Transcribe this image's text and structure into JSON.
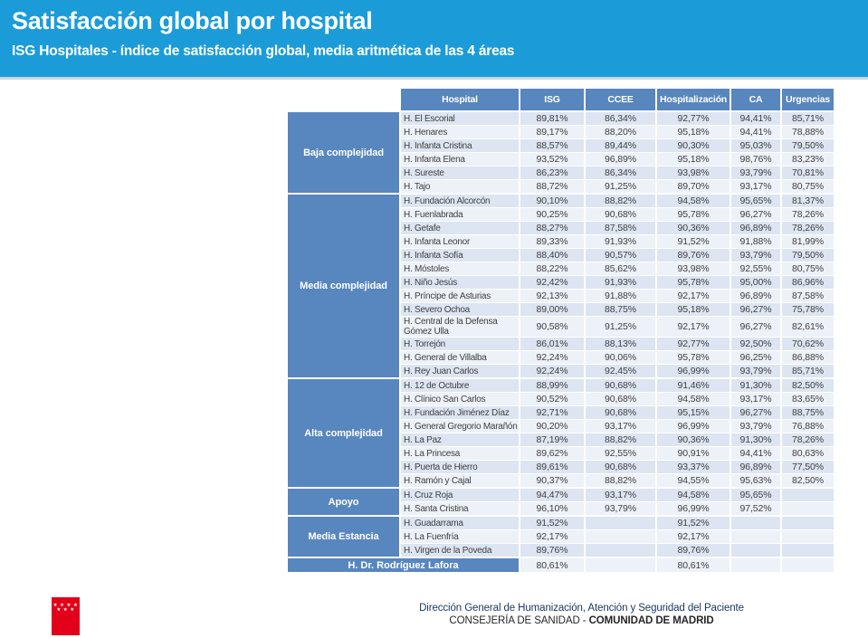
{
  "header": {
    "title": "Satisfacción global por hospital",
    "subtitle": "ISG Hospitales - índice de satisfacción global, media aritmética de las 4 áreas"
  },
  "table": {
    "columns": [
      "Hospital",
      "ISG",
      "CCEE",
      "Hospitalización",
      "CA",
      "Urgencias"
    ],
    "groups": [
      {
        "label": "Baja complejidad",
        "rows": [
          {
            "name": "H. El Escorial",
            "values": [
              "89,81%",
              "86,34%",
              "92,77%",
              "94,41%",
              "85,71%"
            ]
          },
          {
            "name": "H. Henares",
            "values": [
              "89,17%",
              "88,20%",
              "95,18%",
              "94,41%",
              "78,88%"
            ]
          },
          {
            "name": "H. Infanta Cristina",
            "values": [
              "88,57%",
              "89,44%",
              "90,30%",
              "95,03%",
              "79,50%"
            ]
          },
          {
            "name": "H. Infanta Elena",
            "values": [
              "93,52%",
              "96,89%",
              "95,18%",
              "98,76%",
              "83,23%"
            ]
          },
          {
            "name": "H. Sureste",
            "values": [
              "86,23%",
              "86,34%",
              "93,98%",
              "93,79%",
              "70,81%"
            ]
          },
          {
            "name": "H. Tajo",
            "values": [
              "88,72%",
              "91,25%",
              "89,70%",
              "93,17%",
              "80,75%"
            ]
          }
        ]
      },
      {
        "label": "Media complejidad",
        "rows": [
          {
            "name": "H. Fundación Alcorcón",
            "values": [
              "90,10%",
              "88,82%",
              "94,58%",
              "95,65%",
              "81,37%"
            ]
          },
          {
            "name": "H. Fuenlabrada",
            "values": [
              "90,25%",
              "90,68%",
              "95,78%",
              "96,27%",
              "78,26%"
            ]
          },
          {
            "name": "H. Getafe",
            "values": [
              "88,27%",
              "87,58%",
              "90,36%",
              "96,89%",
              "78,26%"
            ]
          },
          {
            "name": "H. Infanta Leonor",
            "values": [
              "89,33%",
              "91,93%",
              "91,52%",
              "91,88%",
              "81,99%"
            ]
          },
          {
            "name": "H. Infanta Sofía",
            "values": [
              "88,40%",
              "90,57%",
              "89,76%",
              "93,79%",
              "79,50%"
            ]
          },
          {
            "name": "H. Móstoles",
            "values": [
              "88,22%",
              "85,62%",
              "93,98%",
              "92,55%",
              "80,75%"
            ]
          },
          {
            "name": "H. Niño Jesús",
            "values": [
              "92,42%",
              "91,93%",
              "95,78%",
              "95,00%",
              "86,96%"
            ]
          },
          {
            "name": "H. Príncipe de Asturias",
            "values": [
              "92,13%",
              "91,88%",
              "92,17%",
              "96,89%",
              "87,58%"
            ]
          },
          {
            "name": "H. Severo Ochoa",
            "values": [
              "89,00%",
              "88,75%",
              "95,18%",
              "96,27%",
              "75,78%"
            ]
          },
          {
            "name": "H. Central de la Defensa Gómez Ulla",
            "values": [
              "90,58%",
              "91,25%",
              "92,17%",
              "96,27%",
              "82,61%"
            ]
          },
          {
            "name": "H. Torrejón",
            "values": [
              "86,01%",
              "88,13%",
              "92,77%",
              "92,50%",
              "70,62%"
            ]
          },
          {
            "name": "H. General de Villalba",
            "values": [
              "92,24%",
              "90,06%",
              "95,78%",
              "96,25%",
              "86,88%"
            ]
          },
          {
            "name": "H. Rey Juan Carlos",
            "values": [
              "92,24%",
              "92,45%",
              "96,99%",
              "93,79%",
              "85,71%"
            ]
          }
        ]
      },
      {
        "label": "Alta complejidad",
        "rows": [
          {
            "name": "H. 12 de Octubre",
            "values": [
              "88,99%",
              "90,68%",
              "91,46%",
              "91,30%",
              "82,50%"
            ]
          },
          {
            "name": "H. Clínico San Carlos",
            "values": [
              "90,52%",
              "90,68%",
              "94,58%",
              "93,17%",
              "83,65%"
            ]
          },
          {
            "name": "H. Fundación Jiménez Díaz",
            "values": [
              "92,71%",
              "90,68%",
              "95,15%",
              "96,27%",
              "88,75%"
            ]
          },
          {
            "name": "H. General Gregorio Marañón",
            "values": [
              "90,20%",
              "93,17%",
              "96,99%",
              "93,79%",
              "76,88%"
            ]
          },
          {
            "name": "H. La Paz",
            "values": [
              "87,19%",
              "88,82%",
              "90,36%",
              "91,30%",
              "78,26%"
            ]
          },
          {
            "name": "H. La Princesa",
            "values": [
              "89,62%",
              "92,55%",
              "90,91%",
              "94,41%",
              "80,63%"
            ]
          },
          {
            "name": "H. Puerta de Hierro",
            "values": [
              "89,61%",
              "90,68%",
              "93,37%",
              "96,89%",
              "77,50%"
            ]
          },
          {
            "name": "H. Ramón y Cajal",
            "values": [
              "90,37%",
              "88,82%",
              "94,55%",
              "95,63%",
              "82,50%"
            ]
          }
        ]
      },
      {
        "label": "Apoyo",
        "rows": [
          {
            "name": "H. Cruz Roja",
            "values": [
              "94,47%",
              "93,17%",
              "94,58%",
              "95,65%",
              ""
            ]
          },
          {
            "name": "H. Santa Cristina",
            "values": [
              "96,10%",
              "93,79%",
              "96,99%",
              "97,52%",
              ""
            ]
          }
        ]
      },
      {
        "label": "Media Estancia",
        "rows": [
          {
            "name": "H. Guadarrama",
            "values": [
              "91,52%",
              "",
              "91,52%",
              "",
              ""
            ]
          },
          {
            "name": "H. La Fuenfría",
            "values": [
              "92,17%",
              "",
              "92,17%",
              "",
              ""
            ]
          },
          {
            "name": "H. Virgen de la Poveda",
            "values": [
              "89,76%",
              "",
              "89,76%",
              "",
              ""
            ]
          }
        ]
      }
    ],
    "final_row": {
      "label": "H. Dr. Rodríguez Lafora",
      "values": [
        "80,61%",
        "",
        "80,61%",
        "",
        ""
      ]
    }
  },
  "footer": {
    "line1": "Dirección General de Humanización, Atención y Seguridad del Paciente",
    "line2_regular": "CONSEJERÍA DE SANIDAD - ",
    "line2_bold": "COMUNIDAD DE MADRID",
    "logo": "comunidad-de-madrid-flag",
    "logo_stars_top": "★ ★ ★ ★",
    "logo_stars_bottom": "★ ★ ★"
  },
  "colors": {
    "banner_blue": "#1B9CD9",
    "table_header_blue": "#5886BE",
    "row_stripe_dark": "#DCE5F1",
    "row_stripe_light": "#EDF1F8",
    "logo_red": "#E2001A",
    "footer_navy": "#17375E"
  }
}
